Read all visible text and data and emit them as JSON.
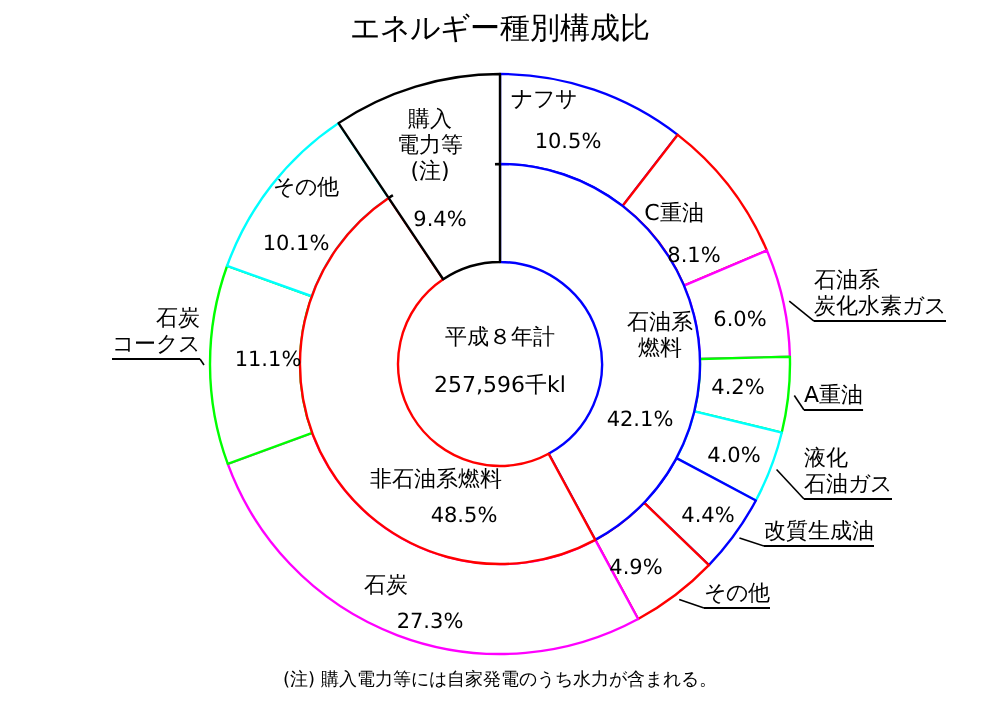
{
  "chart_data": [
    {
      "type": "donut",
      "title": "エネルギー種別構成比",
      "categories": [
        "ナフサ",
        "C重油",
        "石油系炭化水素ガス",
        "A重油",
        "液化石油ガス",
        "改質生成油",
        "その他",
        "石炭",
        "石炭コークス",
        "その他",
        "購入電力等(注)"
      ],
      "values": [
        10.5,
        8.1,
        6.0,
        4.2,
        4.0,
        4.4,
        4.9,
        27.3,
        11.1,
        10.1,
        9.4
      ],
      "value_labels": [
        "10.5%",
        "8.1%",
        "6.0%",
        "4.2%",
        "4.0%",
        "4.4%",
        "4.9%",
        "27.3%",
        "11.1%",
        "10.1%",
        "9.4%"
      ],
      "colors": [
        "#0000ff",
        "#ff0000",
        "#ff00ff",
        "#00ff00",
        "#00ffff",
        "#0000ff",
        "#ff0000",
        "#ff00ff",
        "#00ff00",
        "#00ffff",
        "#000000"
      ],
      "annotations": [
        "(注) 購入電力等には自家発電のうち水力が含まれる。"
      ]
    },
    {
      "type": "donut",
      "categories": [
        "石油系燃料",
        "非石油系燃料",
        null
      ],
      "values": [
        42.1,
        48.5,
        9.4
      ],
      "value_labels": [
        "42.1%",
        "48.5%",
        null
      ],
      "colors": [
        "#0000ff",
        "#ff0000",
        "#000000"
      ],
      "annotations": [
        "平成８年計",
        "257,596千kl"
      ]
    }
  ]
}
